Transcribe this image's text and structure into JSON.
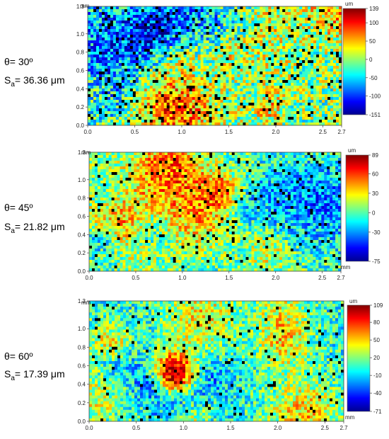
{
  "chart_data": [
    {
      "type": "heatmap",
      "theta_label": "θ= 30º",
      "sa_symbol": "S",
      "sa_sub": "a",
      "sa_value": "= 36.36 μm",
      "x_unit": "mm",
      "y_unit": "mm",
      "colorbar_unit": "um",
      "x_ticks": [
        "0.0",
        "0.5",
        "1.0",
        "1.5",
        "2.0",
        "2.5",
        "2.7"
      ],
      "x_tick_values": [
        0,
        0.5,
        1.0,
        1.5,
        2.0,
        2.5,
        2.7
      ],
      "y_ticks": [
        "0.0",
        "0.2",
        "0.4",
        "0.6",
        "0.8",
        "1.0",
        "1.3"
      ],
      "y_tick_values": [
        0,
        0.2,
        0.4,
        0.6,
        0.8,
        1.0,
        1.3
      ],
      "xlim": [
        0,
        2.7
      ],
      "ylim": [
        0,
        1.3
      ],
      "colorbar_ticks": [
        "139",
        "100",
        "50",
        "0",
        "-50",
        "-100",
        "-151"
      ],
      "colorbar_tick_values": [
        139,
        100,
        50,
        0,
        -50,
        -100,
        -151
      ],
      "zlim": [
        -151,
        139
      ],
      "field": {
        "seed": 11,
        "mean": 0.5,
        "amp": 0.42,
        "hole": 0.07
      }
    },
    {
      "type": "heatmap",
      "theta_label": "θ= 45º",
      "sa_symbol": "S",
      "sa_sub": "a",
      "sa_value": "= 21.82 μm",
      "x_unit": "mm",
      "y_unit": "mm",
      "colorbar_unit": "um",
      "x_ticks": [
        "0.0",
        "0.5",
        "1.0",
        "1.5",
        "2.0",
        "2.5",
        "2.7"
      ],
      "x_tick_values": [
        0,
        0.5,
        1.0,
        1.5,
        2.0,
        2.5,
        2.7
      ],
      "y_ticks": [
        "0.0",
        "0.2",
        "0.4",
        "0.6",
        "0.8",
        "1.0",
        "1.3"
      ],
      "y_tick_values": [
        0,
        0.2,
        0.4,
        0.6,
        0.8,
        1.0,
        1.3
      ],
      "xlim": [
        0,
        2.7
      ],
      "ylim": [
        0,
        1.3
      ],
      "colorbar_ticks": [
        "89",
        "60",
        "30",
        "0",
        "-30",
        "-75"
      ],
      "colorbar_tick_values": [
        89,
        60,
        30,
        0,
        -30,
        -75
      ],
      "zlim": [
        -75,
        89
      ],
      "field": {
        "seed": 23,
        "mean": 0.46,
        "amp": 0.34,
        "hole": 0.045
      }
    },
    {
      "type": "heatmap",
      "theta_label": "θ= 60º",
      "sa_symbol": "S",
      "sa_sub": "a",
      "sa_value": "= 17.39 μm",
      "x_unit": "mm",
      "y_unit": "mm",
      "colorbar_unit": "um",
      "x_ticks": [
        "0.0",
        "0.5",
        "1.0",
        "1.5",
        "2.0",
        "2.5",
        "2.7"
      ],
      "x_tick_values": [
        0,
        0.5,
        1.0,
        1.5,
        2.0,
        2.5,
        2.7
      ],
      "y_ticks": [
        "0.0",
        "0.2",
        "0.4",
        "0.6",
        "0.8",
        "1.0",
        "1.3"
      ],
      "y_tick_values": [
        0,
        0.2,
        0.4,
        0.6,
        0.8,
        1.0,
        1.3
      ],
      "xlim": [
        0,
        2.7
      ],
      "ylim": [
        0,
        1.3
      ],
      "colorbar_ticks": [
        "109",
        "80",
        "50",
        "20",
        "-10",
        "-40",
        "-71"
      ],
      "colorbar_tick_values": [
        109,
        80,
        50,
        20,
        -10,
        -40,
        -71
      ],
      "zlim": [
        -71,
        109
      ],
      "field": {
        "seed": 37,
        "mean": 0.4,
        "amp": 0.33,
        "hole": 0.035
      }
    }
  ]
}
